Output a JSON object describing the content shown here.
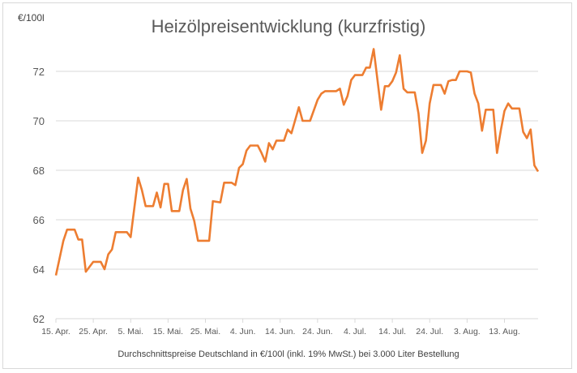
{
  "chart_data": {
    "type": "line",
    "title": "Heizölpreisentwicklung (kurzfristig)",
    "ylabel": "€/100l",
    "xlabel": "Durchschnittspreise Deutschland in €/100l (inkl. 19% MwSt.) bei 3.000 Liter Bestellung",
    "ylim": [
      62,
      72
    ],
    "yticks": [
      62,
      64,
      66,
      68,
      70,
      72
    ],
    "xrange": [
      "04-15",
      "08-22"
    ],
    "xticks": [
      {
        "date": "04-15",
        "label": "15. Apr."
      },
      {
        "date": "04-25",
        "label": "25. Apr."
      },
      {
        "date": "05-05",
        "label": "5. Mai."
      },
      {
        "date": "05-15",
        "label": "15. Mai."
      },
      {
        "date": "05-25",
        "label": "25. Mai."
      },
      {
        "date": "06-04",
        "label": "4. Jun."
      },
      {
        "date": "06-14",
        "label": "14. Jun."
      },
      {
        "date": "06-24",
        "label": "24. Jun."
      },
      {
        "date": "07-04",
        "label": "4. Jul."
      },
      {
        "date": "07-14",
        "label": "14. Jul."
      },
      {
        "date": "07-24",
        "label": "24. Jul."
      },
      {
        "date": "08-03",
        "label": "3. Aug."
      },
      {
        "date": "08-13",
        "label": "13. Aug."
      }
    ],
    "grid": true,
    "line_color": "#ED7D31",
    "grid_color": "#d9d9d9",
    "series": [
      {
        "x": [
          "04-15",
          "04-17",
          "04-18",
          "04-20",
          "04-21",
          "04-22",
          "04-23",
          "04-25",
          "04-27",
          "04-28",
          "04-29",
          "04-30",
          "05-01",
          "05-04",
          "05-05",
          "05-07",
          "05-08",
          "05-09",
          "05-11",
          "05-12",
          "05-13",
          "05-14",
          "05-15",
          "05-16",
          "05-18",
          "05-19",
          "05-20",
          "05-21",
          "05-22",
          "05-23",
          "05-26",
          "05-27",
          "05-29",
          "05-30",
          "06-01",
          "06-02",
          "06-03",
          "06-04",
          "06-05",
          "06-06",
          "06-08",
          "06-09",
          "06-10",
          "06-11",
          "06-12",
          "06-13",
          "06-15",
          "06-16",
          "06-17",
          "06-19",
          "06-20",
          "06-22",
          "06-24",
          "06-25",
          "06-26",
          "06-29",
          "06-30",
          "07-01",
          "07-02",
          "07-03",
          "07-04",
          "07-06",
          "07-07",
          "07-08",
          "07-09",
          "07-11",
          "07-12",
          "07-13",
          "07-14",
          "07-15",
          "07-16",
          "07-17",
          "07-18",
          "07-20",
          "07-21",
          "07-22",
          "07-23",
          "07-24",
          "07-25",
          "07-27",
          "07-28",
          "07-29",
          "07-30",
          "07-31",
          "08-01",
          "08-03",
          "08-04",
          "08-05",
          "08-06",
          "08-07",
          "08-08",
          "08-10",
          "08-11",
          "08-12",
          "08-13",
          "08-14",
          "08-15",
          "08-17",
          "08-18",
          "08-19",
          "08-20",
          "08-21",
          "08-22"
        ],
        "y": [
          63.75,
          65.15,
          65.6,
          65.6,
          65.2,
          65.2,
          63.9,
          64.3,
          64.3,
          64.0,
          64.6,
          64.8,
          65.5,
          65.5,
          65.3,
          67.7,
          67.2,
          66.55,
          66.55,
          67.1,
          66.5,
          67.45,
          67.45,
          66.35,
          66.35,
          67.2,
          67.65,
          66.45,
          65.95,
          65.15,
          65.15,
          66.75,
          66.7,
          67.5,
          67.5,
          67.4,
          68.1,
          68.25,
          68.8,
          69.0,
          69.0,
          68.7,
          68.35,
          69.1,
          68.85,
          69.2,
          69.2,
          69.65,
          69.5,
          70.55,
          70.0,
          70.0,
          70.85,
          71.1,
          71.2,
          71.2,
          71.3,
          70.65,
          71.0,
          71.65,
          71.85,
          71.85,
          72.15,
          72.15,
          72.9,
          70.45,
          71.4,
          71.4,
          71.6,
          71.95,
          72.65,
          71.3,
          71.15,
          71.15,
          70.3,
          68.7,
          69.2,
          70.7,
          71.45,
          71.45,
          71.1,
          71.6,
          71.65,
          71.65,
          72.0,
          72.0,
          71.95,
          71.1,
          70.7,
          69.6,
          70.45,
          70.45,
          68.7,
          69.6,
          70.4,
          70.7,
          70.5,
          70.5,
          69.55,
          69.3,
          69.65,
          68.2,
          67.95
        ]
      }
    ]
  }
}
